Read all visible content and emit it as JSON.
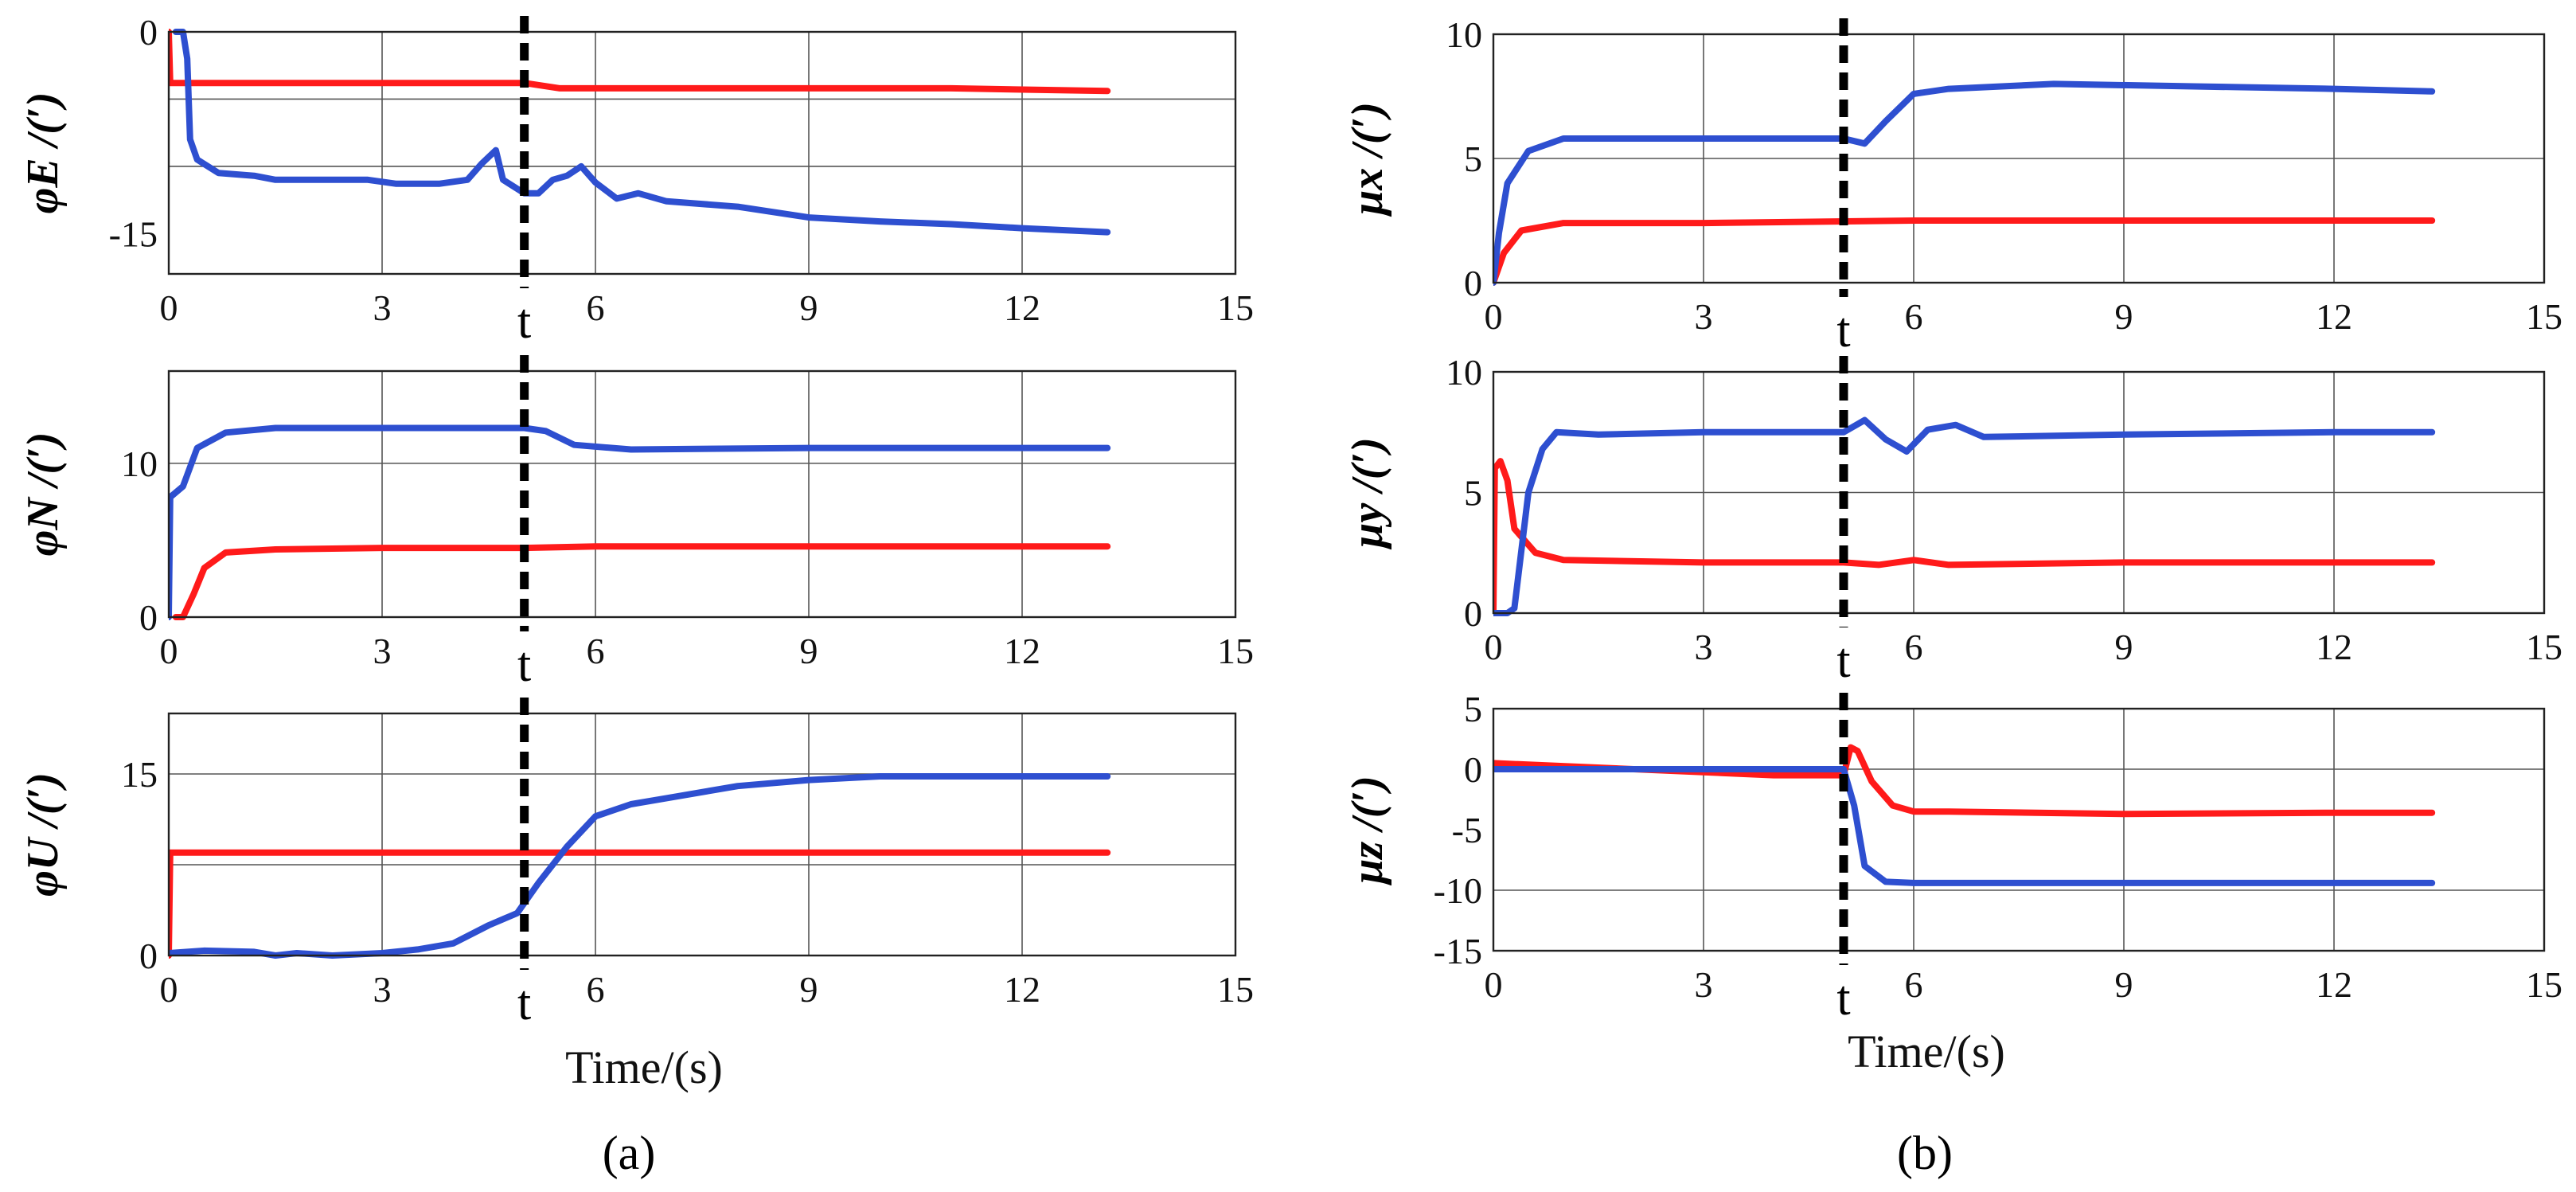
{
  "chart_data": [
    {
      "type": "line",
      "id": "phiE",
      "ylabel": "φE /(′)",
      "xlim": [
        0,
        15
      ],
      "ylim": [
        -18,
        0
      ],
      "xticks": [
        0,
        3,
        6,
        9,
        12,
        15
      ],
      "xtick_labels": [
        "0",
        "3",
        "6",
        "9",
        "12",
        "15"
      ],
      "yticks": [
        0,
        -15
      ],
      "ytick_labels": [
        "0",
        "-15"
      ],
      "ygrid": [
        -10,
        -5
      ],
      "marker": {
        "x": 5.0,
        "label": "t"
      },
      "grid": true,
      "series": [
        {
          "color": "#ff1a1a",
          "points": [
            [
              0,
              0
            ],
            [
              0.02,
              -3.8
            ],
            [
              2,
              -3.8
            ],
            [
              5,
              -3.8
            ],
            [
              5.5,
              -4.2
            ],
            [
              8,
              -4.2
            ],
            [
              11,
              -4.2
            ],
            [
              13.2,
              -4.4
            ]
          ]
        },
        {
          "color": "#2e4fd0",
          "points": [
            [
              0.1,
              0
            ],
            [
              0.2,
              0
            ],
            [
              0.26,
              -2
            ],
            [
              0.3,
              -8
            ],
            [
              0.4,
              -9.5
            ],
            [
              0.7,
              -10.5
            ],
            [
              1.2,
              -10.7
            ],
            [
              1.5,
              -11
            ],
            [
              2,
              -11
            ],
            [
              2.8,
              -11
            ],
            [
              3.2,
              -11.3
            ],
            [
              3.8,
              -11.3
            ],
            [
              4.2,
              -11
            ],
            [
              4.4,
              -9.8
            ],
            [
              4.6,
              -8.8
            ],
            [
              4.7,
              -11
            ],
            [
              5,
              -12
            ],
            [
              5.2,
              -12
            ],
            [
              5.4,
              -11
            ],
            [
              5.6,
              -10.7
            ],
            [
              5.8,
              -10
            ],
            [
              6,
              -11.2
            ],
            [
              6.3,
              -12.4
            ],
            [
              6.6,
              -12
            ],
            [
              7,
              -12.6
            ],
            [
              8,
              -13
            ],
            [
              9,
              -13.8
            ],
            [
              10,
              -14.1
            ],
            [
              11,
              -14.3
            ],
            [
              12,
              -14.6
            ],
            [
              13.2,
              -14.9
            ]
          ]
        }
      ]
    },
    {
      "type": "line",
      "id": "phiN",
      "ylabel": "φN /(′)",
      "xlim": [
        0,
        15
      ],
      "ylim": [
        0,
        16
      ],
      "xticks": [
        0,
        3,
        6,
        9,
        12,
        15
      ],
      "xtick_labels": [
        "0",
        "3",
        "6",
        "9",
        "12",
        "15"
      ],
      "yticks": [
        0,
        10
      ],
      "ytick_labels": [
        "0",
        "10"
      ],
      "ygrid": [
        10
      ],
      "marker": {
        "x": 5.0,
        "label": "t"
      },
      "grid": true,
      "series": [
        {
          "color": "#ff1a1a",
          "points": [
            [
              0.1,
              0
            ],
            [
              0.2,
              0
            ],
            [
              0.35,
              1.5
            ],
            [
              0.5,
              3.2
            ],
            [
              0.8,
              4.2
            ],
            [
              1.5,
              4.4
            ],
            [
              3,
              4.5
            ],
            [
              5,
              4.5
            ],
            [
              6,
              4.6
            ],
            [
              9,
              4.6
            ],
            [
              12,
              4.6
            ],
            [
              13.2,
              4.6
            ]
          ]
        },
        {
          "color": "#2e4fd0",
          "points": [
            [
              0,
              0
            ],
            [
              0.02,
              7.8
            ],
            [
              0.2,
              8.5
            ],
            [
              0.4,
              11
            ],
            [
              0.8,
              12
            ],
            [
              1.5,
              12.3
            ],
            [
              3,
              12.3
            ],
            [
              5,
              12.3
            ],
            [
              5.3,
              12.1
            ],
            [
              5.7,
              11.2
            ],
            [
              6.5,
              10.9
            ],
            [
              9,
              11
            ],
            [
              12,
              11
            ],
            [
              13.2,
              11
            ]
          ]
        }
      ]
    },
    {
      "type": "line",
      "id": "phiU",
      "ylabel": "φU /(′)",
      "xlim": [
        0,
        15
      ],
      "ylim": [
        0,
        20
      ],
      "xticks": [
        0,
        3,
        6,
        9,
        12,
        15
      ],
      "xtick_labels": [
        "0",
        "3",
        "6",
        "9",
        "12",
        "15"
      ],
      "yticks": [
        0,
        15
      ],
      "ytick_labels": [
        "0",
        "15"
      ],
      "ygrid": [
        15,
        7.5
      ],
      "marker": {
        "x": 5.0,
        "label": "t"
      },
      "grid": true,
      "series": [
        {
          "color": "#ff1a1a",
          "points": [
            [
              0,
              0
            ],
            [
              0.02,
              8.5
            ],
            [
              3,
              8.5
            ],
            [
              6,
              8.5
            ],
            [
              9,
              8.5
            ],
            [
              12,
              8.5
            ],
            [
              13.2,
              8.5
            ]
          ]
        },
        {
          "color": "#2e4fd0",
          "points": [
            [
              0,
              0.2
            ],
            [
              0.5,
              0.4
            ],
            [
              1.2,
              0.3
            ],
            [
              1.5,
              0
            ],
            [
              1.8,
              0.2
            ],
            [
              2.3,
              0
            ],
            [
              3,
              0.2
            ],
            [
              3.5,
              0.5
            ],
            [
              4,
              1
            ],
            [
              4.5,
              2.5
            ],
            [
              4.9,
              3.5
            ],
            [
              5.2,
              6
            ],
            [
              5.6,
              9
            ],
            [
              6,
              11.5
            ],
            [
              6.5,
              12.5
            ],
            [
              7,
              13
            ],
            [
              8,
              14
            ],
            [
              9,
              14.5
            ],
            [
              10,
              14.8
            ],
            [
              11,
              14.8
            ],
            [
              12,
              14.8
            ],
            [
              13.2,
              14.8
            ]
          ]
        }
      ]
    },
    {
      "type": "line",
      "id": "mux",
      "ylabel": "μx /(′)",
      "xlim": [
        0,
        15
      ],
      "ylim": [
        0,
        10
      ],
      "xticks": [
        0,
        3,
        6,
        9,
        12,
        15
      ],
      "xtick_labels": [
        "0",
        "3",
        "6",
        "9",
        "12",
        "15"
      ],
      "yticks": [
        0,
        5,
        10
      ],
      "ytick_labels": [
        "0",
        "5",
        "10"
      ],
      "ygrid": [
        5
      ],
      "marker": {
        "x": 5.0,
        "label": "t"
      },
      "grid": true,
      "series": [
        {
          "color": "#ff1a1a",
          "points": [
            [
              0,
              0
            ],
            [
              0.15,
              1.2
            ],
            [
              0.4,
              2.1
            ],
            [
              1,
              2.4
            ],
            [
              3,
              2.4
            ],
            [
              6,
              2.5
            ],
            [
              9,
              2.5
            ],
            [
              12,
              2.5
            ],
            [
              13.4,
              2.5
            ]
          ]
        },
        {
          "color": "#2e4fd0",
          "points": [
            [
              0,
              0
            ],
            [
              0.08,
              2
            ],
            [
              0.2,
              4
            ],
            [
              0.5,
              5.3
            ],
            [
              1,
              5.8
            ],
            [
              3,
              5.8
            ],
            [
              5,
              5.8
            ],
            [
              5.3,
              5.6
            ],
            [
              5.6,
              6.5
            ],
            [
              6,
              7.6
            ],
            [
              6.5,
              7.8
            ],
            [
              8,
              8
            ],
            [
              10,
              7.9
            ],
            [
              12,
              7.8
            ],
            [
              13.4,
              7.7
            ]
          ]
        }
      ]
    },
    {
      "type": "line",
      "id": "muy",
      "ylabel": "μy /(′)",
      "xlim": [
        0,
        15
      ],
      "ylim": [
        0,
        10
      ],
      "xticks": [
        0,
        3,
        6,
        9,
        12,
        15
      ],
      "xtick_labels": [
        "0",
        "3",
        "6",
        "9",
        "12",
        "15"
      ],
      "yticks": [
        0,
        5,
        10
      ],
      "ytick_labels": [
        "0",
        "5",
        "10"
      ],
      "ygrid": [
        5
      ],
      "marker": {
        "x": 5.0,
        "label": "t"
      },
      "grid": true,
      "series": [
        {
          "color": "#ff1a1a",
          "points": [
            [
              0,
              0
            ],
            [
              0.02,
              6
            ],
            [
              0.1,
              6.3
            ],
            [
              0.2,
              5.5
            ],
            [
              0.3,
              3.5
            ],
            [
              0.6,
              2.5
            ],
            [
              1,
              2.2
            ],
            [
              3,
              2.1
            ],
            [
              5,
              2.1
            ],
            [
              5.5,
              2
            ],
            [
              6,
              2.2
            ],
            [
              6.5,
              2
            ],
            [
              9,
              2.1
            ],
            [
              12,
              2.1
            ],
            [
              13.4,
              2.1
            ]
          ]
        },
        {
          "color": "#2e4fd0",
          "points": [
            [
              0,
              0
            ],
            [
              0.2,
              0
            ],
            [
              0.3,
              0.2
            ],
            [
              0.5,
              5
            ],
            [
              0.7,
              6.8
            ],
            [
              0.9,
              7.5
            ],
            [
              1.5,
              7.4
            ],
            [
              3,
              7.5
            ],
            [
              5,
              7.5
            ],
            [
              5.3,
              8
            ],
            [
              5.6,
              7.2
            ],
            [
              5.9,
              6.7
            ],
            [
              6.2,
              7.6
            ],
            [
              6.6,
              7.8
            ],
            [
              7,
              7.3
            ],
            [
              9,
              7.4
            ],
            [
              12,
              7.5
            ],
            [
              13.4,
              7.5
            ]
          ]
        }
      ]
    },
    {
      "type": "line",
      "id": "muz",
      "ylabel": "μz /(′)",
      "xlim": [
        0,
        15
      ],
      "ylim": [
        -15,
        5
      ],
      "xticks": [
        0,
        3,
        6,
        9,
        12,
        15
      ],
      "xtick_labels": [
        "0",
        "3",
        "6",
        "9",
        "12",
        "15"
      ],
      "yticks": [
        5,
        0,
        -5,
        -10,
        -15
      ],
      "ytick_labels": [
        "5",
        "0",
        "-5",
        "-10",
        "-15"
      ],
      "ygrid": [
        0,
        -10
      ],
      "marker": {
        "x": 5.0,
        "label": "t"
      },
      "grid": true,
      "series": [
        {
          "color": "#ff1a1a",
          "points": [
            [
              0,
              0.5
            ],
            [
              2,
              0
            ],
            [
              4,
              -0.5
            ],
            [
              5,
              -0.5
            ],
            [
              5.1,
              1.8
            ],
            [
              5.2,
              1.5
            ],
            [
              5.4,
              -1
            ],
            [
              5.7,
              -3
            ],
            [
              6,
              -3.5
            ],
            [
              6.5,
              -3.5
            ],
            [
              9,
              -3.7
            ],
            [
              12,
              -3.6
            ],
            [
              13.4,
              -3.6
            ]
          ]
        },
        {
          "color": "#2e4fd0",
          "points": [
            [
              0,
              0
            ],
            [
              2,
              0
            ],
            [
              5,
              0
            ],
            [
              5.15,
              -3
            ],
            [
              5.3,
              -8
            ],
            [
              5.6,
              -9.3
            ],
            [
              6,
              -9.4
            ],
            [
              9,
              -9.4
            ],
            [
              12,
              -9.4
            ],
            [
              13.4,
              -9.4
            ]
          ]
        }
      ]
    }
  ],
  "labels": {
    "xlabel_a": "Time/(s)",
    "xlabel_b": "Time/(s)",
    "panel_a": "(a)",
    "panel_b": "(b)"
  }
}
